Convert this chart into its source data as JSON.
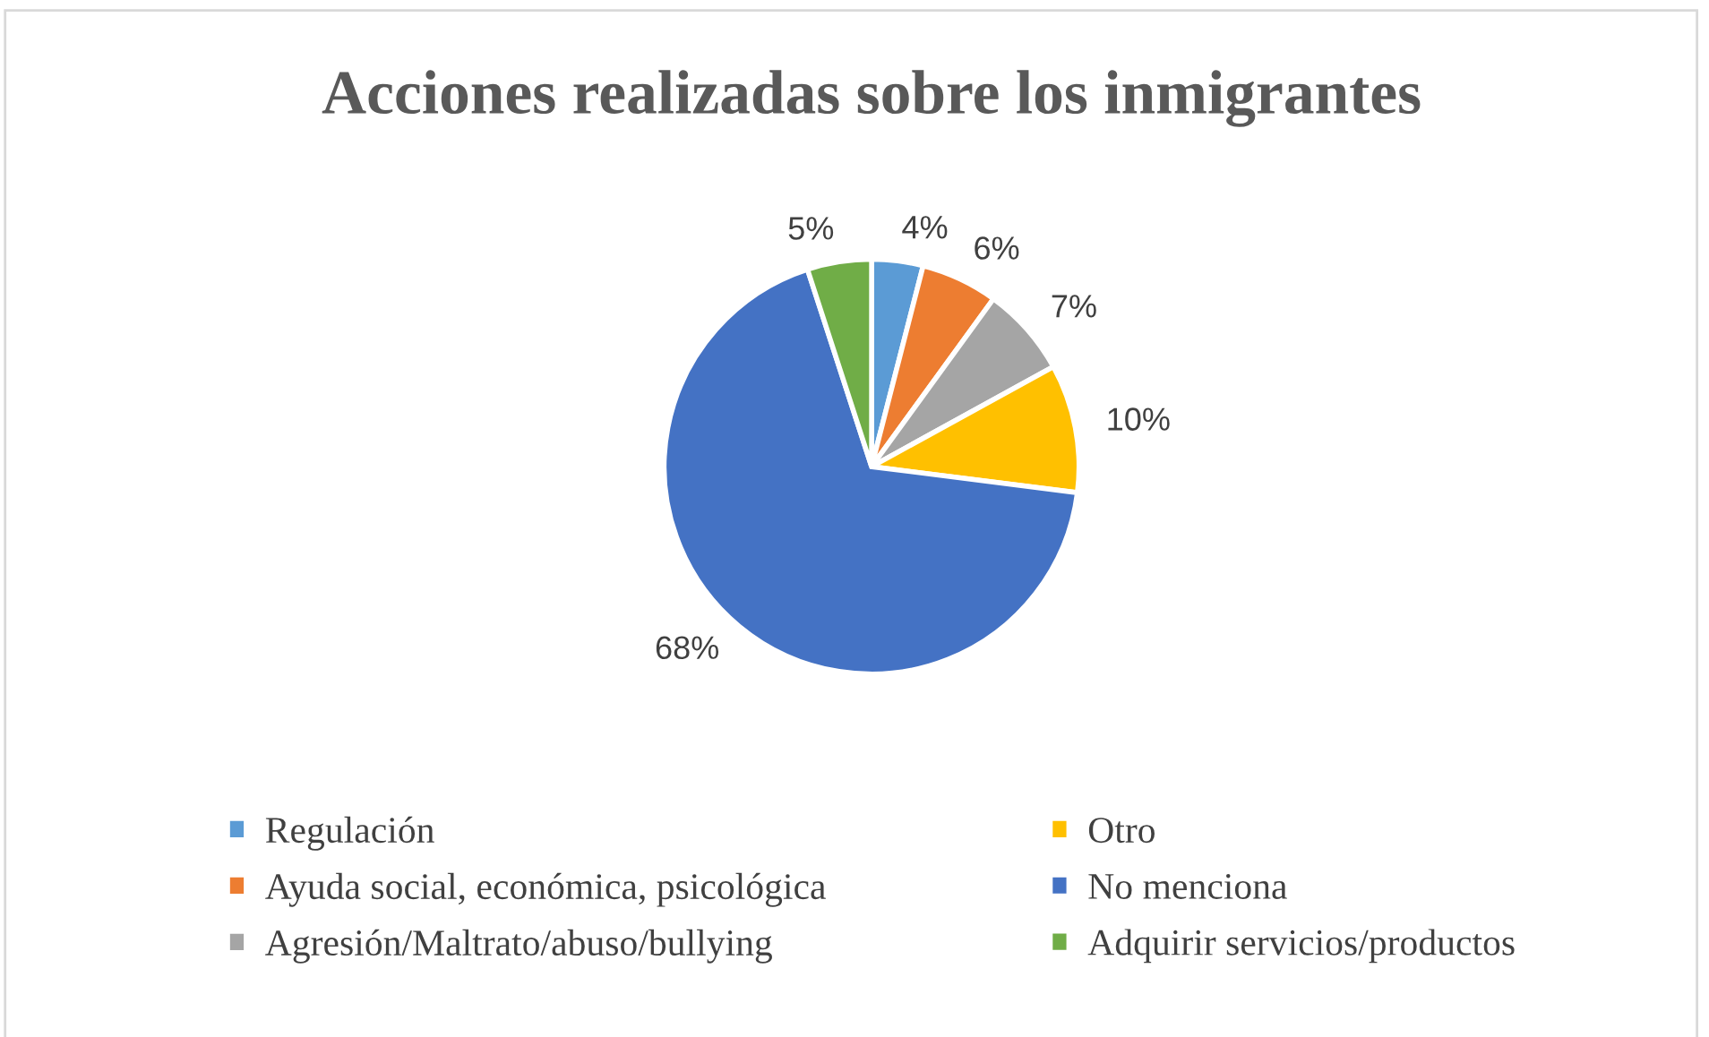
{
  "chart_data": {
    "type": "pie",
    "title": "Acciones realizadas sobre los inmigrantes",
    "categories": [
      "Regulación",
      "Ayuda social, económica, psicológica",
      "Agresión/Maltrato/abuso/bullying",
      "Otro",
      "No menciona",
      "Adquirir servicios/productos"
    ],
    "values": [
      4,
      6,
      7,
      10,
      68,
      5
    ],
    "colors": [
      "#5b9bd5",
      "#ed7d31",
      "#a5a5a5",
      "#ffc000",
      "#4472c4",
      "#70ad47"
    ],
    "value_labels": [
      "4%",
      "6%",
      "7%",
      "10%",
      "68%",
      "5%"
    ],
    "legend": "bottom"
  }
}
